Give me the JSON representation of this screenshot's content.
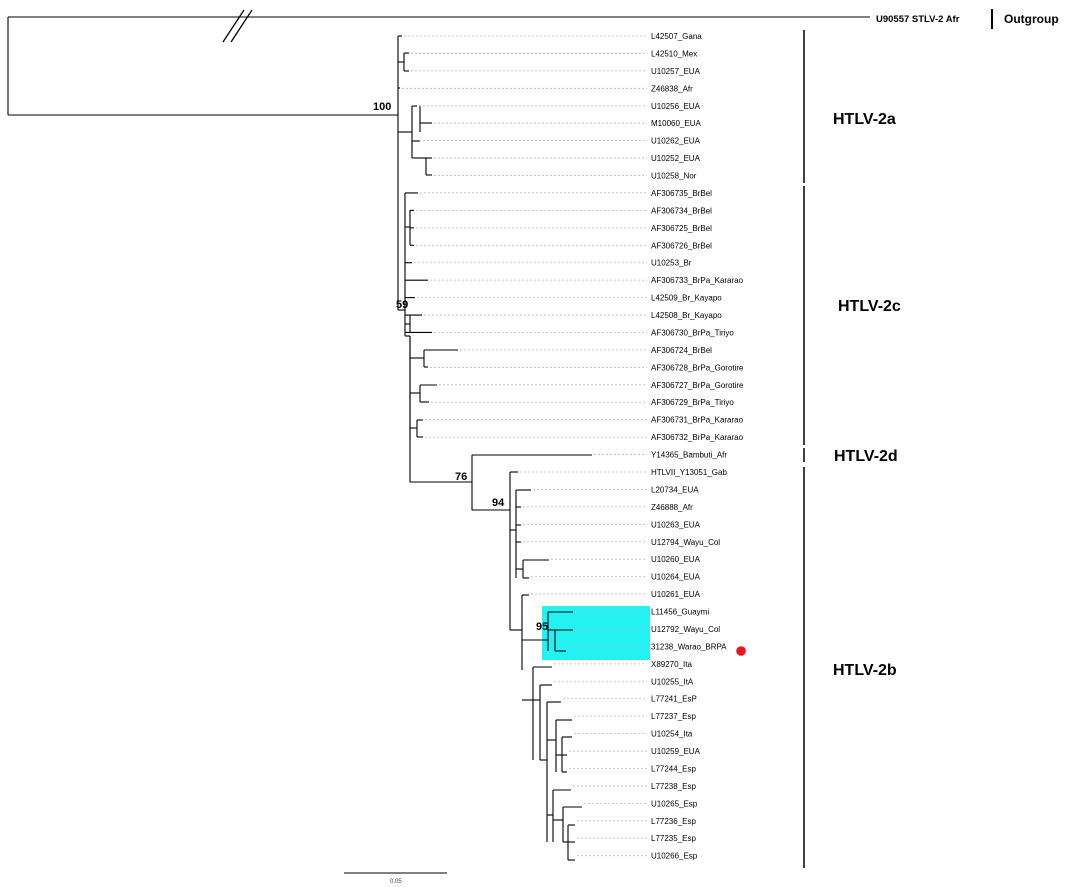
{
  "outgroup": {
    "taxon": "U90557 STLV-2 Afr",
    "label": "Outgroup"
  },
  "taxa": [
    "L42507_Gana",
    "L42510_Mex",
    "U10257_EUA",
    "Z46838_Afr",
    "U10256_EUA",
    "M10060_EUA",
    "U10262_EUA",
    "U10252_EUA",
    "U10258_Nor",
    "AF306735_BrBel",
    "AF306734_BrBel",
    "AF306725_BrBel",
    "AF306726_BrBel",
    "U10253_Br",
    "AF306733_BrPa_Kararao",
    "L42509_Br_Kayapo",
    "L42508_Br_Kayapo",
    "AF306730_BrPa_Tiriyo",
    "AF306724_BrBel",
    "AF306728_BrPa_Gorotire",
    "AF306727_BrPa_Gorotire",
    "AF306729_BrPa_Tiriyo",
    "AF306731_BrPa_Kararao",
    "AF306732_BrPa_Kararao",
    "Y14365_Bambuti_Afr",
    "HTLVII_Y13051_Gab",
    "L20734_EUA",
    "Z46888_Afr",
    "U10263_EUA",
    "U12794_Wayu_Col",
    "U10260_EUA",
    "U10264_EUA",
    "U10261_EUA",
    "L11456_Guaymi",
    "U12792_Wayu_Col",
    "31238_Warao_BRPA",
    "X89270_Ita",
    "U10255_ItA",
    "L77241_EsP",
    "L77237_Esp",
    "U10254_Ita",
    "U10259_EUA",
    "L77244_Esp",
    "L77238_Esp",
    "U10265_Esp",
    "L77236_Esp",
    "L77235_Esp",
    "U10266_Esp"
  ],
  "clades": [
    {
      "name": "HTLV-2a",
      "first": 0,
      "last": 8
    },
    {
      "name": "HTLV-2c",
      "first": 9,
      "last": 23
    },
    {
      "name": "HTLV-2d",
      "first": 24,
      "last": 24
    },
    {
      "name": "HTLV-2b",
      "first": 25,
      "last": 47
    }
  ],
  "bootstrap": [
    "100",
    "59",
    "76",
    "94",
    "95"
  ],
  "highlight": {
    "taxa": [
      "L11456_Guaymi",
      "U12792_Wayu_Col",
      "31238_Warao_BRPA"
    ],
    "color": "#22f2f2"
  },
  "marker": {
    "taxon": "31238_Warao_BRPA",
    "color": "#e8161e"
  },
  "scale_bar": {
    "label": "0.05"
  },
  "colors": {
    "branch": "#000000",
    "dotted_leader": "#bbbbbb"
  }
}
